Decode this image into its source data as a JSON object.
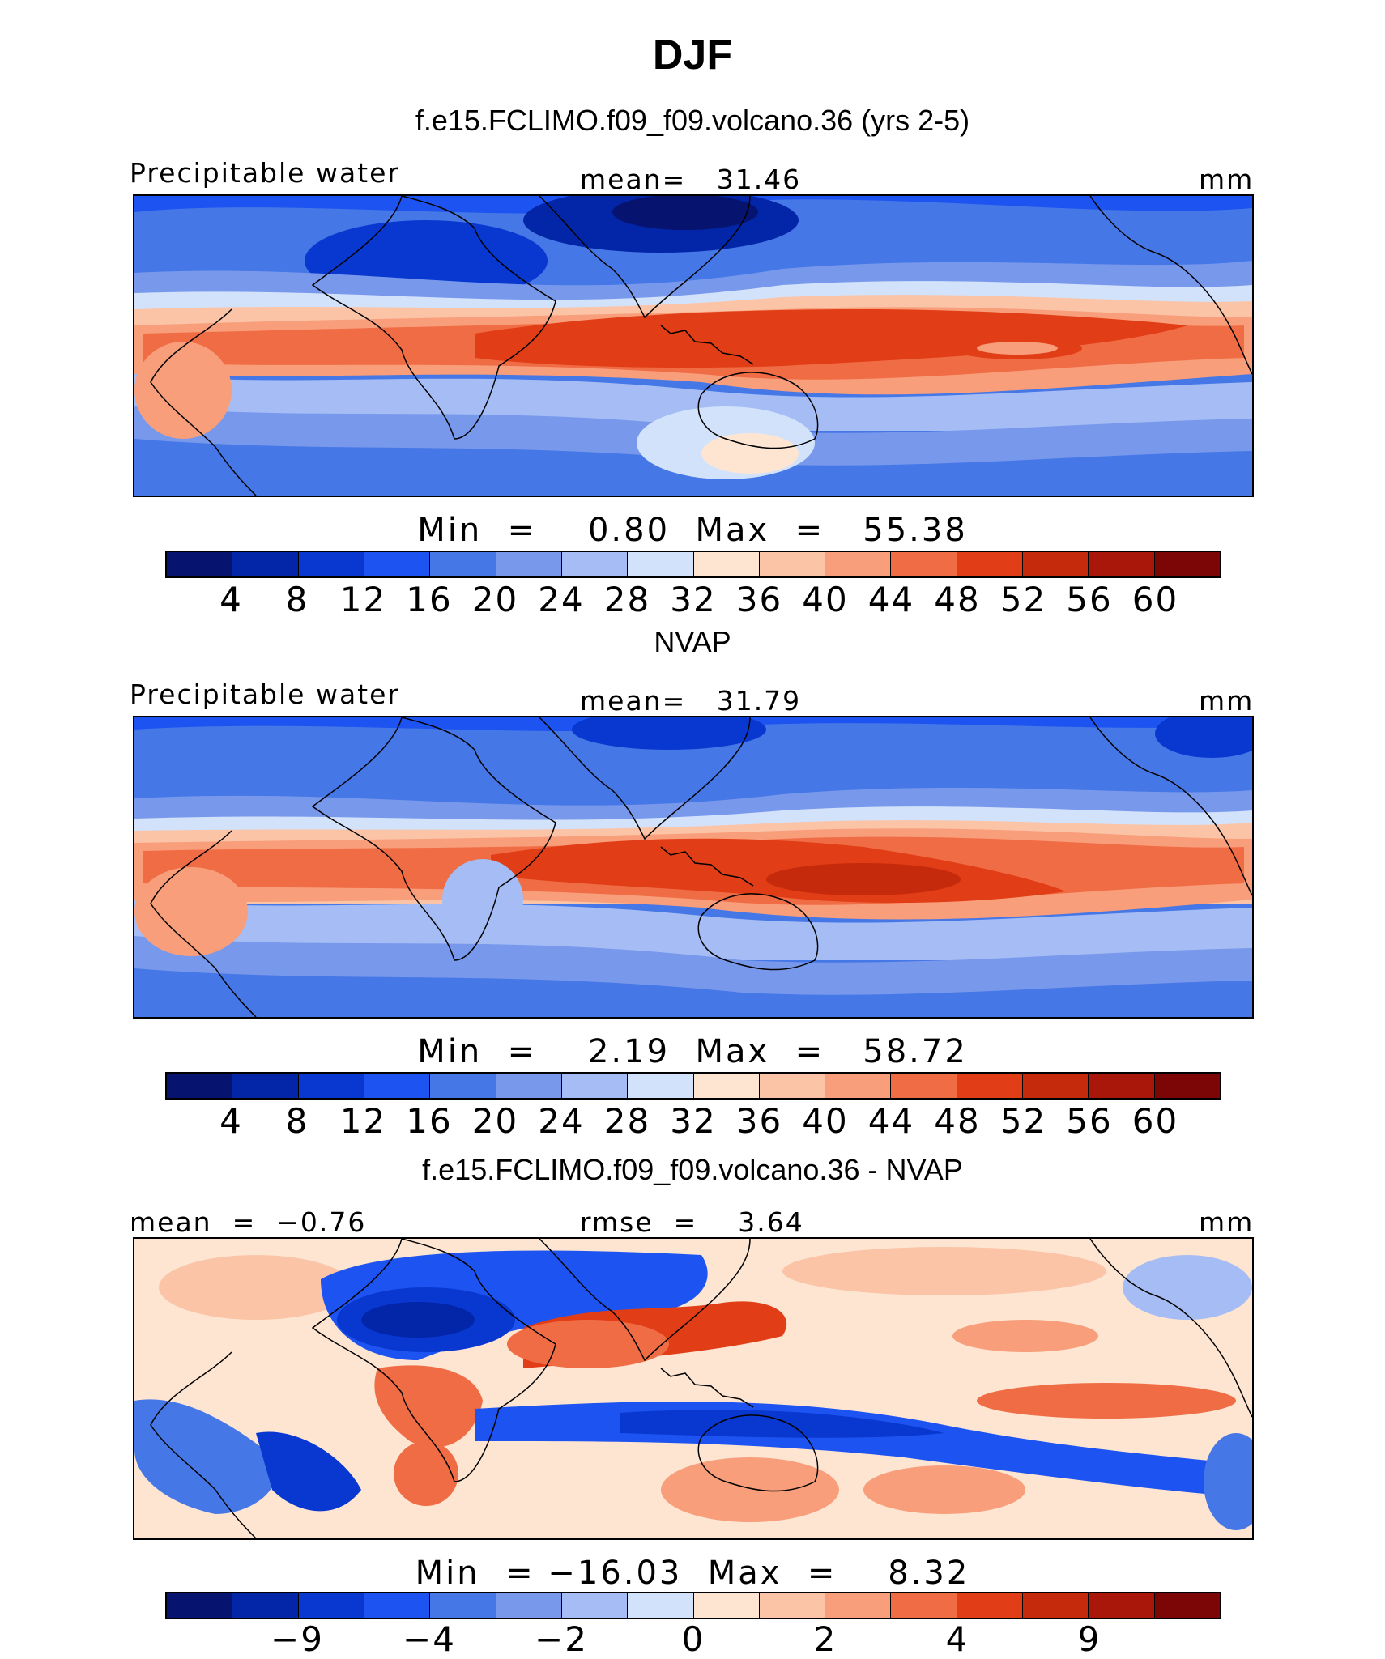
{
  "figure": {
    "title": "DJF",
    "colors": {
      "abs": [
        "#06136f",
        "#0326a8",
        "#0838cf",
        "#1d53f0",
        "#4577e6",
        "#7898ec",
        "#a5bdf4",
        "#d2e2fa",
        "#fde5d2",
        "#fbc4a7",
        "#f89e7b",
        "#f06c45",
        "#e13d16",
        "#c52a0c",
        "#a8170a",
        "#7c0605"
      ],
      "diff": [
        "#06136f",
        "#0326a8",
        "#0838cf",
        "#1d53f0",
        "#4577e6",
        "#7898ec",
        "#a5bdf4",
        "#d2e2fa",
        "#fde5d2",
        "#fbc4a7",
        "#f89e7b",
        "#f06c45",
        "#e13d16",
        "#c52a0c",
        "#a8170a",
        "#7c0605"
      ]
    }
  },
  "panels": [
    {
      "title": "f.e15.FCLIMO.f09_f09.volcano.36 (yrs 2-5)",
      "left_label": "Precipitable water",
      "center_label": "mean=   31.46",
      "right_label": "mm",
      "stats": "Min  =    0.80  Max  =   55.38",
      "ticks": [
        "4",
        "8",
        "12",
        "16",
        "20",
        "24",
        "28",
        "32",
        "36",
        "40",
        "44",
        "48",
        "52",
        "56",
        "60"
      ],
      "tick_slots": [
        1,
        2,
        3,
        4,
        5,
        6,
        7,
        8,
        9,
        10,
        11,
        12,
        13,
        14,
        15
      ]
    },
    {
      "title": "NVAP",
      "left_label": "Precipitable water",
      "center_label": "mean=   31.79",
      "right_label": "mm",
      "stats": "Min  =    2.19  Max  =   58.72",
      "ticks": [
        "4",
        "8",
        "12",
        "16",
        "20",
        "24",
        "28",
        "32",
        "36",
        "40",
        "44",
        "48",
        "52",
        "56",
        "60"
      ],
      "tick_slots": [
        1,
        2,
        3,
        4,
        5,
        6,
        7,
        8,
        9,
        10,
        11,
        12,
        13,
        14,
        15
      ]
    },
    {
      "title": "f.e15.FCLIMO.f09_f09.volcano.36 - NVAP",
      "left_label": "mean  =  −0.76",
      "center_label": "rmse  =    3.64",
      "right_label": "mm",
      "stats": "Min  = −16.03  Max  =    8.32",
      "ticks": [
        "−9",
        "−4",
        "−2",
        "0",
        "2",
        "4",
        "9"
      ],
      "tick_slots": [
        2,
        4,
        6,
        8,
        10,
        12,
        14
      ]
    }
  ]
}
